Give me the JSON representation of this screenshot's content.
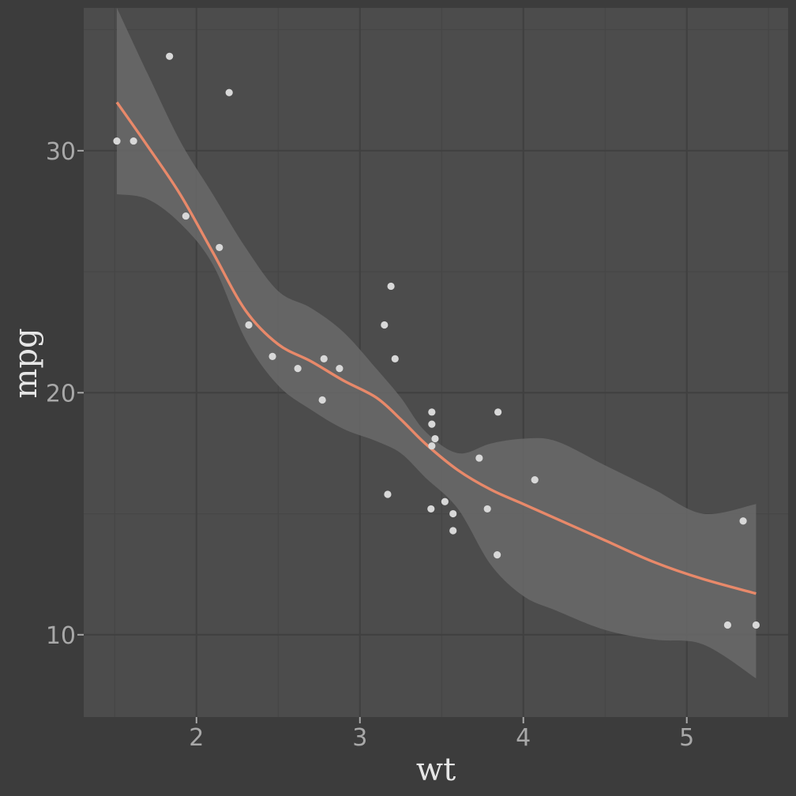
{
  "chart_data": {
    "type": "scatter",
    "xlabel": "wt",
    "ylabel": "mpg",
    "xlim": [
      1.31,
      5.62
    ],
    "ylim": [
      6.6,
      35.9
    ],
    "x_ticks": [
      2,
      3,
      4,
      5
    ],
    "y_ticks": [
      10,
      20,
      30
    ],
    "grid": true,
    "points": [
      {
        "x": 1.513,
        "y": 30.4
      },
      {
        "x": 1.615,
        "y": 30.4
      },
      {
        "x": 1.835,
        "y": 33.9
      },
      {
        "x": 1.935,
        "y": 27.3
      },
      {
        "x": 2.14,
        "y": 26.0
      },
      {
        "x": 2.2,
        "y": 32.4
      },
      {
        "x": 2.32,
        "y": 22.8
      },
      {
        "x": 2.465,
        "y": 21.5
      },
      {
        "x": 2.62,
        "y": 21.0
      },
      {
        "x": 2.77,
        "y": 19.7
      },
      {
        "x": 2.78,
        "y": 21.4
      },
      {
        "x": 2.875,
        "y": 21.0
      },
      {
        "x": 3.15,
        "y": 22.8
      },
      {
        "x": 3.17,
        "y": 15.8
      },
      {
        "x": 3.19,
        "y": 24.4
      },
      {
        "x": 3.215,
        "y": 21.4
      },
      {
        "x": 3.435,
        "y": 15.2
      },
      {
        "x": 3.44,
        "y": 18.7
      },
      {
        "x": 3.44,
        "y": 19.2
      },
      {
        "x": 3.44,
        "y": 17.8
      },
      {
        "x": 3.46,
        "y": 18.1
      },
      {
        "x": 3.52,
        "y": 15.5
      },
      {
        "x": 3.57,
        "y": 15.0
      },
      {
        "x": 3.57,
        "y": 14.3
      },
      {
        "x": 3.73,
        "y": 17.3
      },
      {
        "x": 3.78,
        "y": 15.2
      },
      {
        "x": 3.84,
        "y": 13.3
      },
      {
        "x": 3.845,
        "y": 19.2
      },
      {
        "x": 4.07,
        "y": 16.4
      },
      {
        "x": 5.25,
        "y": 10.4
      },
      {
        "x": 5.345,
        "y": 14.7
      },
      {
        "x": 5.424,
        "y": 10.4
      }
    ],
    "smooth": {
      "x": [
        1.513,
        1.7,
        1.9,
        2.1,
        2.3,
        2.5,
        2.7,
        2.9,
        3.1,
        3.25,
        3.4,
        3.6,
        3.8,
        4.0,
        4.2,
        4.5,
        4.8,
        5.1,
        5.424
      ],
      "y": [
        32.0,
        30.2,
        28.2,
        25.8,
        23.4,
        22.0,
        21.3,
        20.5,
        19.8,
        18.9,
        17.9,
        16.8,
        16.0,
        15.4,
        14.8,
        13.9,
        13.0,
        12.3,
        11.7
      ],
      "upper": [
        35.9,
        33.2,
        30.4,
        28.2,
        26.0,
        24.2,
        23.5,
        22.5,
        21.0,
        19.8,
        18.4,
        17.5,
        17.9,
        18.1,
        18.0,
        17.0,
        16.0,
        15.0,
        15.4
      ],
      "lower": [
        28.2,
        28.0,
        27.0,
        25.3,
        22.2,
        20.3,
        19.3,
        18.5,
        18.0,
        17.5,
        16.5,
        15.2,
        12.9,
        11.6,
        11.0,
        10.2,
        9.8,
        9.6,
        8.2
      ]
    },
    "colors": {
      "background": "#3c3c3c",
      "panel": "#4c4c4c",
      "grid_major": "#404040",
      "grid_minor": "#464646",
      "band": "#6a6a6a",
      "line": "#e8896a",
      "point": "#d8d8d8",
      "tick": "#a8a8a8",
      "title": "#e6e6e6"
    }
  }
}
